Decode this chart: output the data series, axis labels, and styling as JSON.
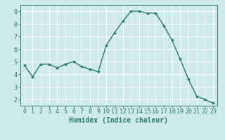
{
  "x": [
    0,
    1,
    2,
    3,
    4,
    5,
    6,
    7,
    8,
    9,
    10,
    11,
    12,
    13,
    14,
    15,
    16,
    17,
    18,
    19,
    20,
    21,
    22,
    23
  ],
  "y": [
    4.7,
    3.8,
    4.8,
    4.8,
    4.5,
    4.8,
    5.0,
    4.6,
    4.4,
    4.2,
    6.3,
    7.3,
    8.2,
    9.0,
    9.0,
    8.85,
    8.85,
    7.85,
    6.7,
    5.2,
    3.6,
    2.25,
    2.0,
    1.7
  ],
  "xlabel": "Humidex (Indice chaleur)",
  "ylim": [
    1.5,
    9.5
  ],
  "xlim": [
    -0.5,
    23.5
  ],
  "yticks": [
    2,
    3,
    4,
    5,
    6,
    7,
    8,
    9
  ],
  "xticks": [
    0,
    1,
    2,
    3,
    4,
    5,
    6,
    7,
    8,
    9,
    10,
    11,
    12,
    13,
    14,
    15,
    16,
    17,
    18,
    19,
    20,
    21,
    22,
    23
  ],
  "line_color": "#2d7a6e",
  "marker": "D",
  "marker_size": 2.0,
  "bg_color": "#ceeaea",
  "grid_color": "#ffffff",
  "axis_color": "#2d7a6e",
  "tick_color": "#2d7a6e",
  "label_color": "#2d7a6e",
  "xlabel_fontsize": 7.0,
  "tick_fontsize": 6.0,
  "linewidth": 1.0
}
